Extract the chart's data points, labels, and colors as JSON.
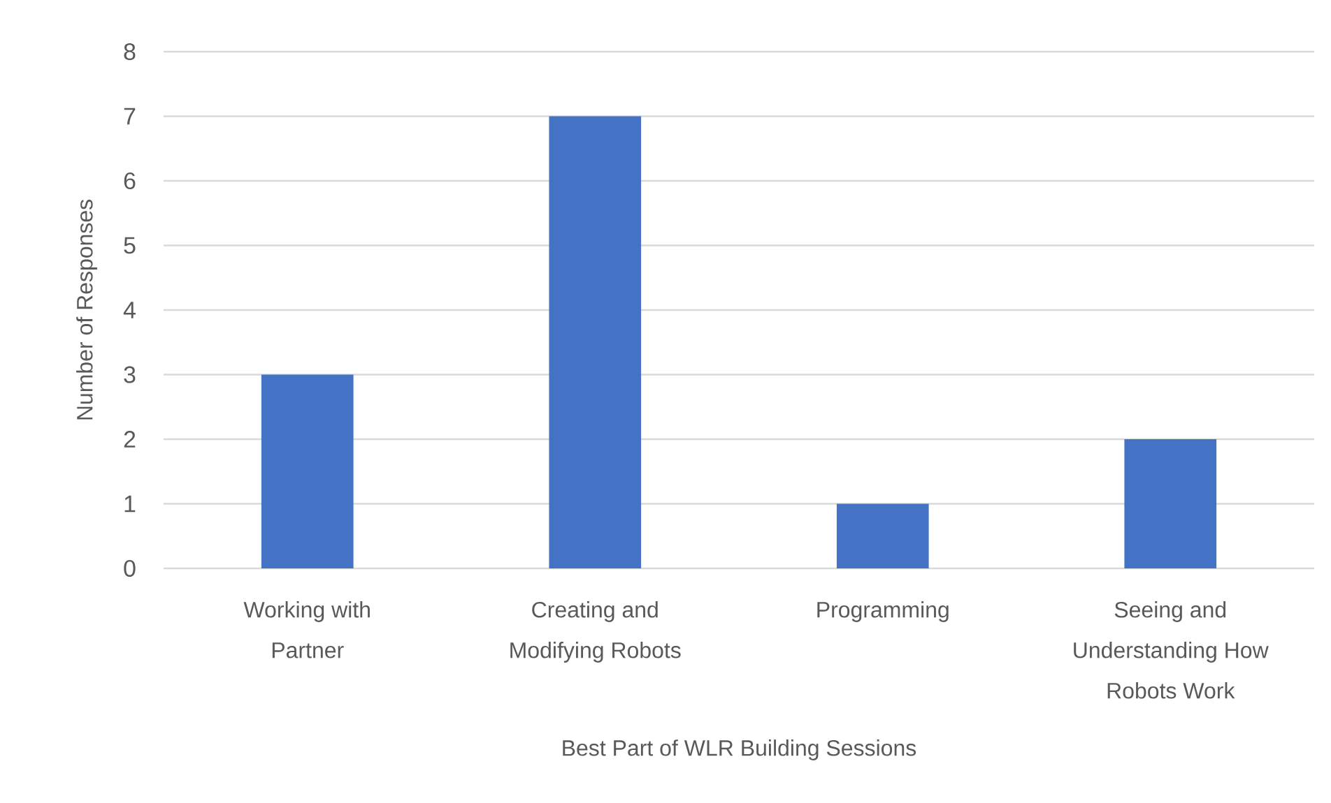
{
  "chart_data": {
    "type": "bar",
    "xlabel": "Best Part of WLR Building Sessions",
    "ylabel": "Number of Responses",
    "categories": [
      "Working with Partner",
      "Creating and Modifying Robots",
      "Programming",
      "Seeing and Understanding How Robots Work"
    ],
    "values": [
      3,
      7,
      1,
      2
    ],
    "color": "#4472c4",
    "ylim": [
      0,
      8
    ],
    "yticks": [
      0,
      1,
      2,
      3,
      4,
      5,
      6,
      7,
      8
    ],
    "grid": "y"
  }
}
